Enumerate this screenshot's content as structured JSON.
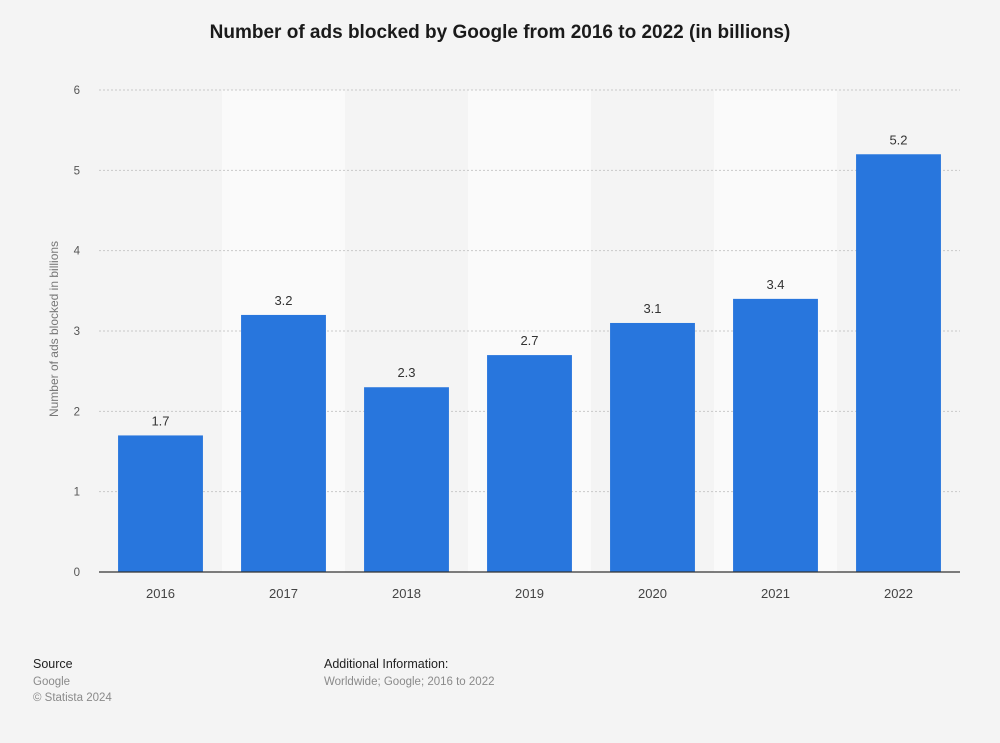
{
  "chart_data": {
    "type": "bar",
    "title": "Number of ads blocked by Google from 2016 to 2022 (in billions)",
    "xlabel": "",
    "ylabel": "Number of ads blocked in billions",
    "categories": [
      "2016",
      "2017",
      "2018",
      "2019",
      "2020",
      "2021",
      "2022"
    ],
    "values": [
      1.7,
      3.2,
      2.3,
      2.7,
      3.1,
      3.4,
      5.2
    ],
    "value_labels": [
      "1.7",
      "3.2",
      "2.3",
      "2.7",
      "3.1",
      "3.4",
      "5.2"
    ],
    "yticks": [
      "0",
      "1",
      "2",
      "3",
      "4",
      "5",
      "6"
    ],
    "ylim": [
      0,
      6
    ],
    "grid": true,
    "legend": "none",
    "bar_color": "#2876dd"
  },
  "footer": {
    "source_heading": "Source",
    "source_name": "Google",
    "copyright": "© Statista 2024",
    "additional_heading": "Additional Information:",
    "additional_text": "Worldwide; Google; 2016 to 2022"
  }
}
